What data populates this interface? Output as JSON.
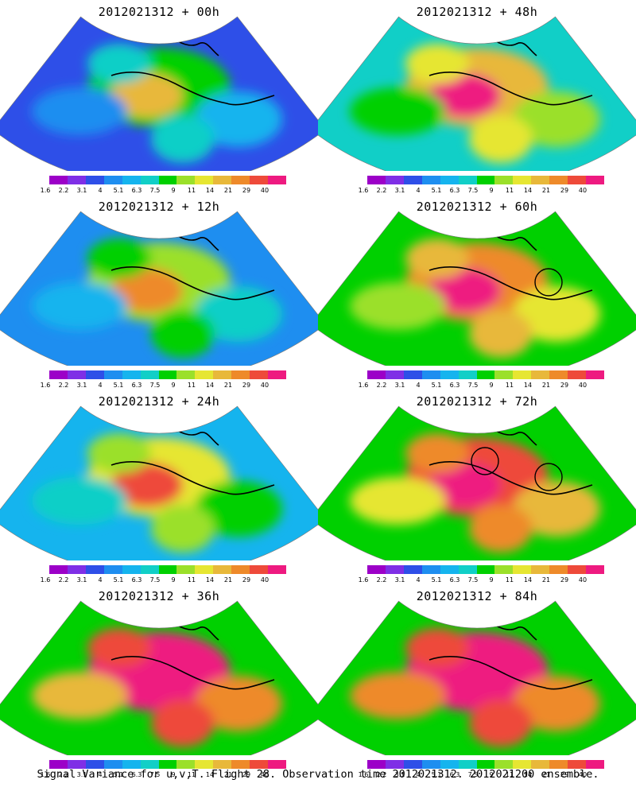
{
  "panels": [
    {
      "title": "2012021312 + 00h",
      "circles": 0
    },
    {
      "title": "2012021312 + 48h",
      "circles": 0
    },
    {
      "title": "2012021312 + 12h",
      "circles": 0
    },
    {
      "title": "2012021312 + 60h",
      "circles": 1
    },
    {
      "title": "2012021312 + 24h",
      "circles": 0
    },
    {
      "title": "2012021312 + 72h",
      "circles": 2
    },
    {
      "title": "2012021312 + 36h",
      "circles": 0
    },
    {
      "title": "2012021312 + 84h",
      "circles": 0
    }
  ],
  "colorbar": {
    "labels": [
      "1.6",
      "2.2",
      "3.1",
      "4",
      "5.1",
      "6.3",
      "7.5",
      "9",
      "11",
      "14",
      "21",
      "29",
      "40"
    ],
    "colors": [
      "#9c00c8",
      "#7f2fe6",
      "#2e4fe8",
      "#1e8ef0",
      "#15b4ee",
      "#11cfc7",
      "#00d000",
      "#9be02a",
      "#e6e632",
      "#e8b83a",
      "#ee8a2a",
      "#ee4a3a",
      "#ee1a80"
    ]
  },
  "caption": "Signal Variance for u,v,T. Flight 28. Observation time 2012021312. 2012021200 ensemble."
}
